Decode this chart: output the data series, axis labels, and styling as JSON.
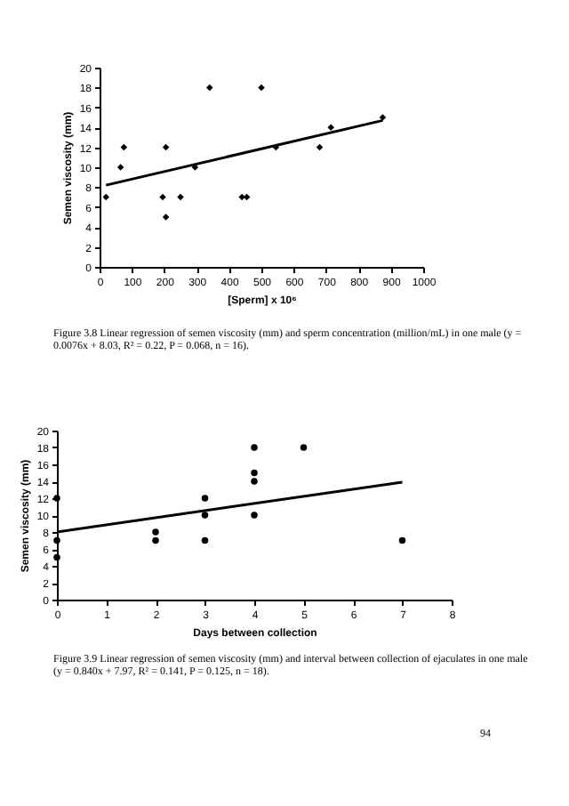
{
  "chart_data": [
    {
      "type": "scatter",
      "xlabel": "[Sperm] x 10⁶",
      "ylabel": "Semen viscosity (mm)",
      "xlim": [
        0,
        1000
      ],
      "xticks": [
        0,
        100,
        200,
        300,
        400,
        500,
        600,
        700,
        800,
        900,
        1000
      ],
      "ylim": [
        0,
        20
      ],
      "yticks": [
        0,
        2,
        4,
        6,
        8,
        10,
        12,
        14,
        16,
        18,
        20
      ],
      "series": [
        {
          "type": "scatter",
          "marker": "diamond",
          "color": "#000000",
          "x": [
            20,
            65,
            75,
            195,
            205,
            205,
            250,
            295,
            340,
            440,
            455,
            500,
            545,
            680,
            715,
            875
          ],
          "values": [
            7,
            10,
            12,
            7,
            5,
            12,
            7,
            10,
            18,
            7,
            7,
            18,
            12,
            12,
            14,
            15
          ]
        },
        {
          "type": "line",
          "color": "#000000",
          "x": [
            20,
            875
          ],
          "values": [
            8.2,
            14.7
          ]
        }
      ],
      "annotations": [
        "Figure 3.8 Linear regression of semen viscosity (mm) and sperm concentration (million/mL) in one male (y = 0.0076x + 8.03, R² = 0.22, P = 0.068, n = 16)."
      ]
    },
    {
      "type": "scatter",
      "xlabel": "Days between collection",
      "ylabel": "Semen viscosity (mm)",
      "xlim": [
        0,
        8
      ],
      "xticks": [
        0,
        1,
        2,
        3,
        4,
        5,
        6,
        7,
        8
      ],
      "ylim": [
        0,
        20
      ],
      "yticks": [
        0,
        2,
        4,
        6,
        8,
        10,
        12,
        14,
        16,
        18,
        20
      ],
      "series": [
        {
          "type": "scatter",
          "marker": "circle",
          "color": "#000000",
          "x": [
            0,
            0,
            0,
            2,
            2,
            3,
            3,
            3,
            4,
            4,
            4,
            4,
            5,
            7
          ],
          "values": [
            12,
            7,
            5,
            8,
            7,
            12,
            10,
            7,
            18,
            15,
            14,
            10,
            18,
            7
          ]
        },
        {
          "type": "line",
          "color": "#000000",
          "x": [
            0,
            7
          ],
          "values": [
            8.0,
            13.9
          ]
        }
      ],
      "annotations": [
        "Figure 3.9 Linear regression of semen viscosity (mm) and interval between collection of ejaculates in one male (y = 0.840x + 7.97, R² = 0.141, P = 0.125, n = 18).",
        "94"
      ]
    }
  ]
}
